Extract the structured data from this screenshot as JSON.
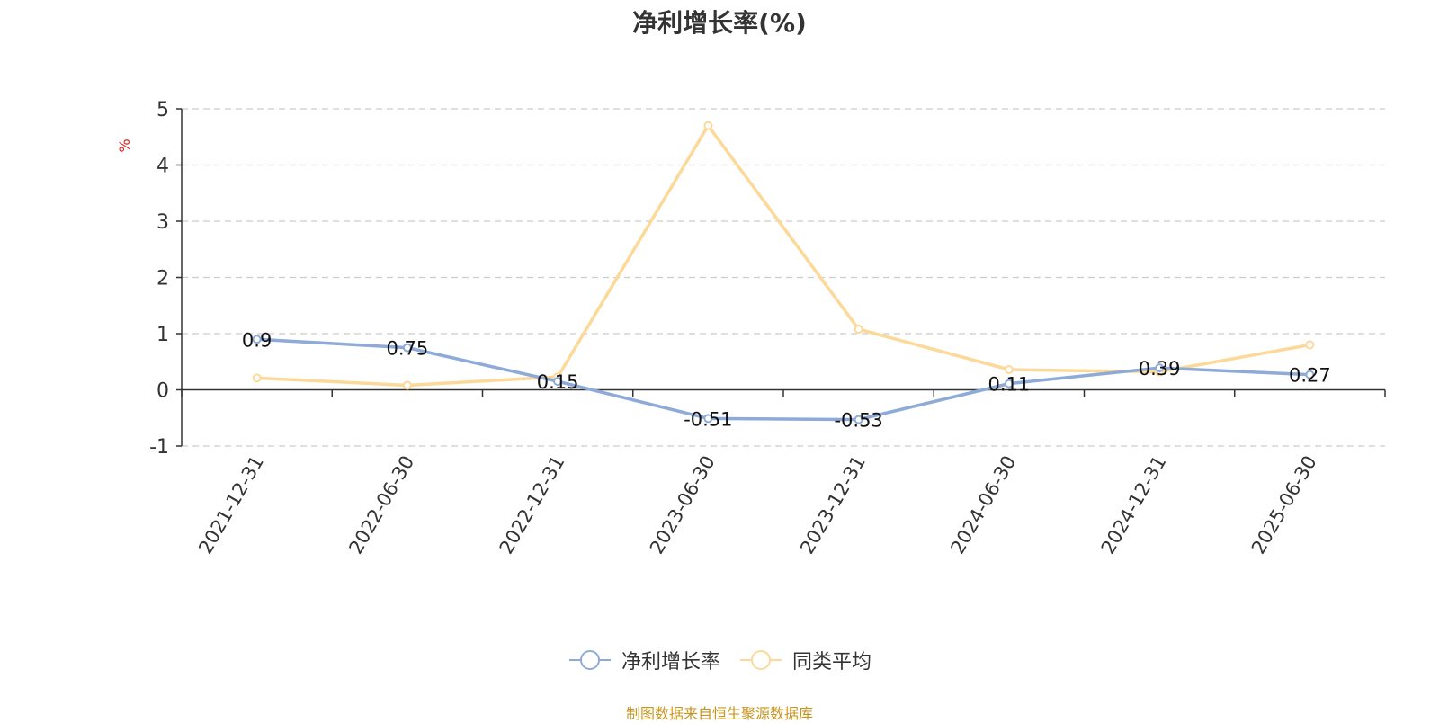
{
  "chart_data": {
    "type": "line",
    "title": "净利增长率(%)",
    "ylabel": "%",
    "xlabel": "",
    "ylim": [
      -1,
      5
    ],
    "yticks": [
      -1,
      0,
      1,
      2,
      3,
      4,
      5
    ],
    "grid": true,
    "legend_position": "bottom",
    "categories": [
      "2021-12-31",
      "2022-06-30",
      "2022-12-31",
      "2023-06-30",
      "2023-12-31",
      "2024-06-30",
      "2024-12-31",
      "2025-06-30"
    ],
    "series": [
      {
        "name": "净利增长率",
        "color": "#8eaad8",
        "values": [
          0.9,
          0.75,
          0.15,
          -0.51,
          -0.53,
          0.11,
          0.39,
          0.27
        ],
        "show_labels": true
      },
      {
        "name": "同类平均",
        "color": "#fcd998",
        "values": [
          0.21,
          0.08,
          0.23,
          4.7,
          1.08,
          0.36,
          0.32,
          0.8
        ],
        "show_labels": false
      }
    ]
  },
  "source_note": "制图数据来自恒生聚源数据库"
}
